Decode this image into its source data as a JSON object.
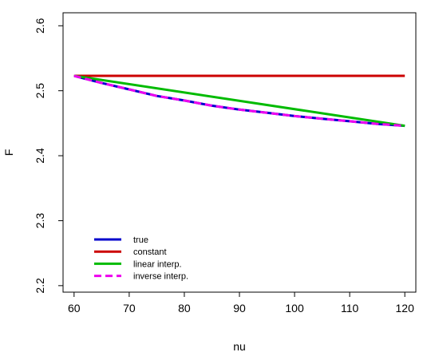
{
  "chart_data": {
    "type": "line",
    "xlabel": "nu",
    "ylabel": "F",
    "xlim": [
      58,
      122
    ],
    "ylim": [
      2.19,
      2.62
    ],
    "xticks": [
      "60",
      "70",
      "80",
      "90",
      "100",
      "110",
      "120"
    ],
    "yticks": [
      "2.2",
      "2.3",
      "2.4",
      "2.5",
      "2.6"
    ],
    "legend_position": "bottom-left",
    "series": [
      {
        "name": "true",
        "color": "#0000cc",
        "dash": "solid",
        "x": [
          60,
          65,
          70,
          75,
          80,
          85,
          90,
          95,
          100,
          105,
          110,
          115,
          120
        ],
        "y": [
          2.523,
          2.512,
          2.502,
          2.492,
          2.485,
          2.477,
          2.471,
          2.466,
          2.461,
          2.457,
          2.453,
          2.449,
          2.446
        ]
      },
      {
        "name": "constant",
        "color": "#cc0000",
        "dash": "solid",
        "x": [
          60,
          120
        ],
        "y": [
          2.523,
          2.523
        ]
      },
      {
        "name": "linear interp.",
        "color": "#00bb00",
        "dash": "solid",
        "x": [
          60,
          120
        ],
        "y": [
          2.523,
          2.446
        ]
      },
      {
        "name": "inverse interp.",
        "color": "#ee00ee",
        "dash": "dashed",
        "x": [
          60,
          65,
          70,
          75,
          80,
          85,
          90,
          95,
          100,
          105,
          110,
          115,
          120
        ],
        "y": [
          2.523,
          2.512,
          2.502,
          2.492,
          2.485,
          2.477,
          2.471,
          2.466,
          2.461,
          2.457,
          2.453,
          2.449,
          2.446
        ]
      }
    ]
  }
}
